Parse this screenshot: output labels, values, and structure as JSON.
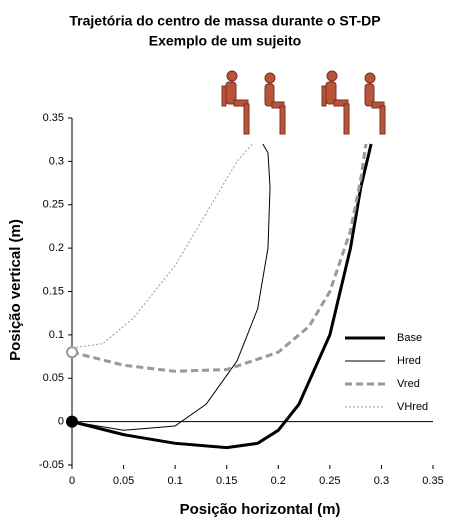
{
  "chart_data": {
    "type": "line",
    "title": "Trajetória do centro de massa durante o ST-DP",
    "subtitle": "Exemplo de um sujeito",
    "x_label": "Posição horizontal (m)",
    "y_label": "Posição vertical (m)",
    "xlim": [
      0,
      0.35
    ],
    "xticks": [
      0,
      0.05,
      0.1,
      0.15,
      0.2,
      0.25,
      0.3,
      0.35
    ],
    "ylim": [
      -0.05,
      0.35
    ],
    "yticks": [
      -0.05,
      0,
      0.05,
      0.1,
      0.15,
      0.2,
      0.25,
      0.3,
      0.35
    ],
    "grid": false,
    "legend": "lower right",
    "series": [
      {
        "name": "Base",
        "color": "#000000",
        "line_width": 3,
        "dash": "solid",
        "x": [
          0,
          0.05,
          0.1,
          0.15,
          0.18,
          0.2,
          0.22,
          0.25,
          0.27,
          0.28,
          0.29
        ],
        "values": [
          0,
          -0.015,
          -0.025,
          -0.03,
          -0.025,
          -0.01,
          0.02,
          0.1,
          0.2,
          0.27,
          0.32
        ]
      },
      {
        "name": "Hred",
        "color": "#000000",
        "line_width": 1,
        "dash": "solid",
        "x": [
          0,
          0.05,
          0.1,
          0.13,
          0.16,
          0.18,
          0.19,
          0.192,
          0.19,
          0.185
        ],
        "values": [
          0,
          -0.01,
          -0.005,
          0.02,
          0.07,
          0.13,
          0.2,
          0.27,
          0.31,
          0.32
        ]
      },
      {
        "name": "Vred",
        "color": "#999999",
        "line_width": 3,
        "dash": "dashed",
        "x": [
          0,
          0.05,
          0.1,
          0.15,
          0.2,
          0.23,
          0.25,
          0.27,
          0.28,
          0.285
        ],
        "values": [
          0.08,
          0.065,
          0.058,
          0.06,
          0.08,
          0.11,
          0.15,
          0.22,
          0.28,
          0.32
        ]
      },
      {
        "name": "VHred",
        "color": "#999999",
        "line_width": 1,
        "dash": "dotted",
        "x": [
          0,
          0.03,
          0.06,
          0.1,
          0.13,
          0.16,
          0.175
        ],
        "values": [
          0.085,
          0.09,
          0.12,
          0.18,
          0.24,
          0.3,
          0.32
        ]
      }
    ]
  }
}
